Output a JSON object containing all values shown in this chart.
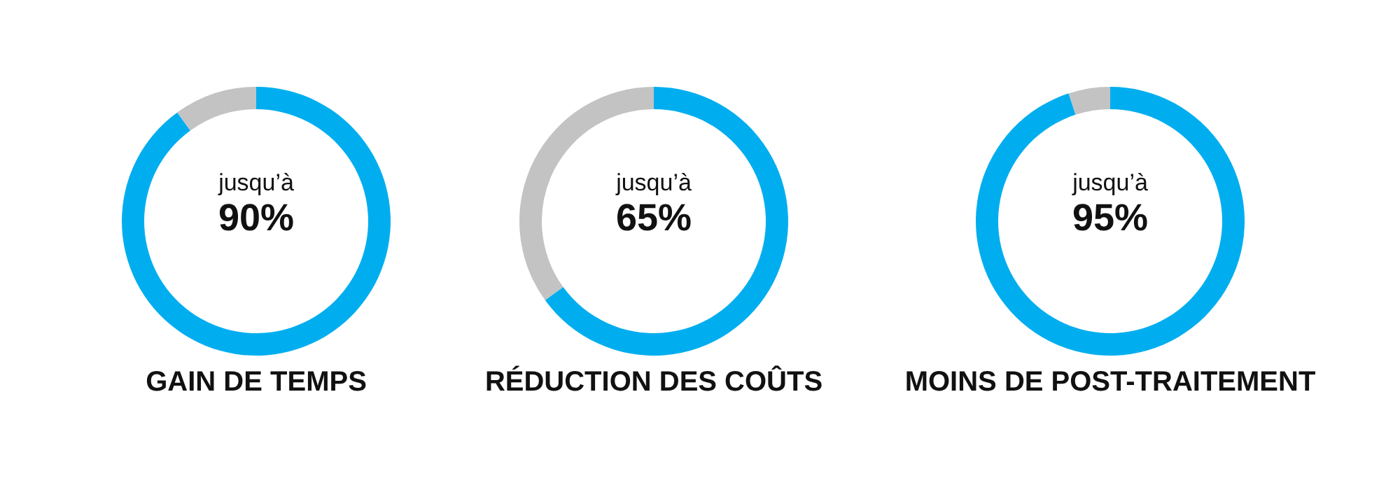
{
  "chart_data": [
    {
      "type": "donut",
      "title": "GAIN DE TEMPS",
      "categories": [
        null,
        null
      ],
      "values": [
        90,
        10
      ],
      "colors": [
        "#00aeef",
        "#c3c3c3"
      ],
      "annotations": [
        "jusqu’à",
        "90%"
      ]
    },
    {
      "type": "donut",
      "title": "RÉDUCTION DES COÛTS",
      "categories": [
        null,
        null
      ],
      "values": [
        65,
        35
      ],
      "colors": [
        "#00aeef",
        "#c3c3c3"
      ],
      "annotations": [
        "jusqu’à",
        "65%"
      ]
    },
    {
      "type": "donut",
      "title": "MOINS DE POST-TRAITEMENT",
      "categories": [
        null,
        null
      ],
      "values": [
        95,
        5
      ],
      "colors": [
        "#00aeef",
        "#c3c3c3"
      ],
      "annotations": [
        "jusqu’à",
        "95%"
      ]
    }
  ]
}
